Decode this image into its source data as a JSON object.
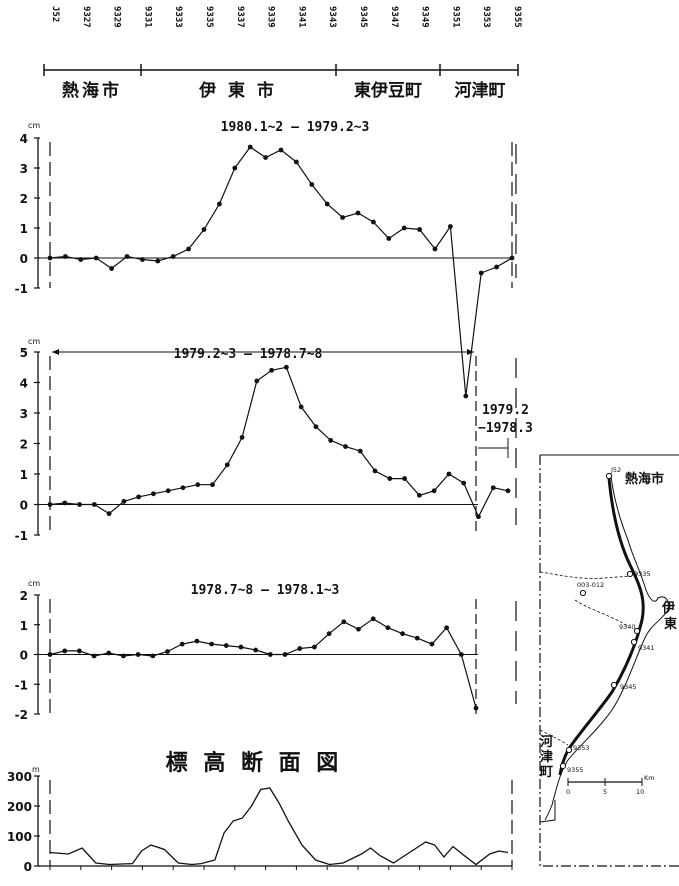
{
  "header": {
    "benchmarks": [
      "J52",
      "9327",
      "9329",
      "9331",
      "9333",
      "9335",
      "9337",
      "9339",
      "9341",
      "9343",
      "9345",
      "9347",
      "9349",
      "9351",
      "9353",
      "9355"
    ],
    "towns": [
      "熱海市",
      "伊 東 市",
      "東伊豆町",
      "河津町"
    ]
  },
  "chart_data": [
    {
      "type": "line",
      "title": "1980.1~2 — 1979.2~3",
      "ylabel": "cm",
      "ylim": [
        -1,
        4
      ],
      "yticks": [
        "4",
        "3",
        "2",
        "1",
        "0",
        "-1"
      ],
      "values": [
        0,
        0.05,
        -0.05,
        0,
        -0.35,
        0.05,
        -0.05,
        -0.1,
        0.05,
        0.3,
        0.95,
        1.8,
        3.0,
        3.7,
        3.35,
        3.6,
        3.2,
        2.45,
        1.8,
        1.35,
        1.5,
        1.2,
        0.65,
        1.0,
        0.95,
        0.3,
        1.05,
        -4.6,
        -0.5,
        -0.3,
        0
      ]
    },
    {
      "type": "line",
      "title": "1979.2~3 — 1978.7~8",
      "ylabel": "cm",
      "ylim": [
        -1,
        5
      ],
      "yticks": [
        "5",
        "4",
        "3",
        "2",
        "1",
        "0",
        "-1"
      ],
      "values": [
        0,
        0.05,
        0,
        0,
        -0.3,
        0.1,
        0.25,
        0.35,
        0.45,
        0.55,
        0.65,
        0.65,
        1.3,
        2.2,
        4.05,
        4.4,
        4.5,
        3.2,
        2.55,
        2.1,
        1.9,
        1.75,
        1.1,
        0.85,
        0.85,
        0.3,
        0.45,
        1.0,
        0.7,
        -0.4,
        0.55,
        0.45
      ],
      "annotation": [
        "1979.2",
        "−1978.3"
      ]
    },
    {
      "type": "line",
      "title": "1978.7~8 — 1978.1~3",
      "ylabel": "cm",
      "ylim": [
        -2,
        2
      ],
      "yticks": [
        "2",
        "1",
        "0",
        "-1",
        "-2"
      ],
      "values": [
        0,
        0.12,
        0.12,
        -0.05,
        0.05,
        -0.05,
        0,
        -0.05,
        0.1,
        0.35,
        0.45,
        0.35,
        0.3,
        0.25,
        0.15,
        0,
        0,
        0.2,
        0.25,
        0.7,
        1.1,
        0.85,
        1.2,
        0.9,
        0.7,
        0.55,
        0.35,
        0.9,
        0,
        -1.8
      ]
    },
    {
      "type": "area",
      "title": "標 高 断 面 図",
      "ylabel": "m",
      "ylim": [
        0,
        300
      ],
      "yticks": [
        "300",
        "200",
        "100",
        "0"
      ],
      "x": [
        0,
        0.04,
        0.07,
        0.1,
        0.13,
        0.18,
        0.2,
        0.22,
        0.25,
        0.28,
        0.31,
        0.33,
        0.36,
        0.38,
        0.4,
        0.42,
        0.44,
        0.46,
        0.48,
        0.5,
        0.52,
        0.55,
        0.58,
        0.61,
        0.64,
        0.68,
        0.7,
        0.72,
        0.75,
        0.78,
        0.8,
        0.82,
        0.84,
        0.86,
        0.88,
        0.9,
        0.93,
        0.96,
        0.98,
        1
      ],
      "values": [
        45,
        40,
        60,
        10,
        5,
        8,
        50,
        70,
        55,
        10,
        5,
        8,
        20,
        110,
        150,
        160,
        200,
        255,
        260,
        210,
        150,
        70,
        20,
        5,
        10,
        40,
        60,
        35,
        10,
        40,
        60,
        80,
        70,
        30,
        65,
        40,
        5,
        40,
        50,
        45
      ]
    }
  ],
  "map": {
    "cities": [
      "熱海市",
      "伊東",
      "河津町"
    ],
    "points": [
      "J52",
      "9335",
      "003-012",
      "9340",
      "9341",
      "9345",
      "9353",
      "9355"
    ],
    "scale": [
      "0",
      "5",
      "10",
      "Km"
    ]
  }
}
